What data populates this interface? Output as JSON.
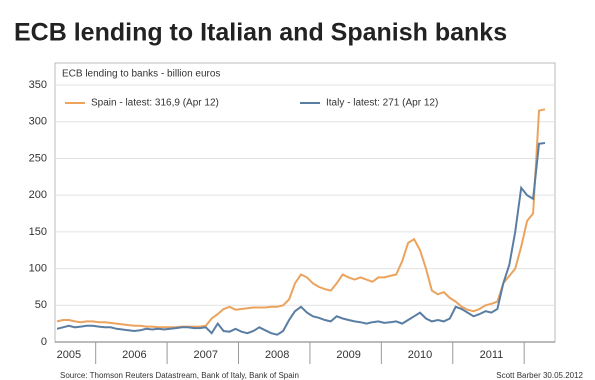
{
  "chart_data": {
    "type": "line",
    "title": "ECB lending to Italian and Spanish banks",
    "subtitle": "ECB lending to banks - billion euros",
    "source": "Source: Thomson Reuters Datastream, Bank of Italy, Bank of Spain",
    "credit": "Scott Barber 30.05.2012",
    "categories": [
      null,
      null,
      "2005",
      null,
      null,
      null,
      null,
      null,
      null,
      null,
      null,
      null,
      null,
      "2006",
      null,
      null,
      null,
      null,
      null,
      null,
      null,
      null,
      null,
      null,
      null,
      "2007",
      null,
      null,
      null,
      null,
      null,
      null,
      null,
      null,
      null,
      null,
      null,
      "2008",
      null,
      null,
      null,
      null,
      null,
      null,
      null,
      null,
      null,
      null,
      null,
      "2009",
      null,
      null,
      null,
      null,
      null,
      null,
      null,
      null,
      null,
      null,
      null,
      "2010",
      null,
      null,
      null,
      null,
      null,
      null,
      null,
      null,
      null,
      null,
      null,
      "2011",
      null,
      null,
      null,
      null,
      null,
      null,
      null,
      null,
      null
    ],
    "series": [
      {
        "name": "Spain - latest: 316,9 (Apr 12)",
        "color": "#eba35e",
        "values": [
          28,
          30,
          30,
          28,
          27,
          28,
          28,
          27,
          27,
          26,
          25,
          24,
          23,
          22,
          22,
          21,
          21,
          20,
          20,
          20,
          20,
          21,
          21,
          21,
          21,
          22,
          32,
          38,
          45,
          48,
          44,
          45,
          46,
          47,
          47,
          47,
          48,
          48,
          50,
          58,
          80,
          92,
          88,
          80,
          75,
          72,
          70,
          80,
          92,
          88,
          85,
          88,
          85,
          82,
          88,
          88,
          90,
          92,
          110,
          135,
          140,
          125,
          100,
          70,
          65,
          68,
          60,
          55,
          48,
          44,
          42,
          45,
          50,
          52,
          55,
          80,
          90,
          100,
          130,
          165,
          175,
          315,
          316.9
        ]
      },
      {
        "name": "Italy - latest: 271 (Apr 12)",
        "color": "#5a7ea3",
        "values": [
          18,
          20,
          22,
          20,
          21,
          22,
          22,
          21,
          20,
          20,
          18,
          17,
          16,
          15,
          16,
          18,
          17,
          18,
          17,
          18,
          19,
          20,
          20,
          19,
          19,
          20,
          12,
          25,
          15,
          14,
          18,
          14,
          12,
          15,
          20,
          16,
          12,
          10,
          15,
          30,
          42,
          48,
          40,
          35,
          33,
          30,
          28,
          35,
          32,
          30,
          28,
          27,
          25,
          27,
          28,
          26,
          27,
          28,
          25,
          30,
          35,
          40,
          32,
          28,
          30,
          28,
          32,
          48,
          45,
          40,
          35,
          38,
          42,
          40,
          45,
          80,
          105,
          150,
          210,
          200,
          195,
          270,
          271
        ]
      }
    ],
    "ylim": [
      0,
      380
    ],
    "yticks": [
      0,
      50,
      100,
      150,
      200,
      250,
      300,
      350
    ],
    "grid": true,
    "legend": "upper left"
  }
}
